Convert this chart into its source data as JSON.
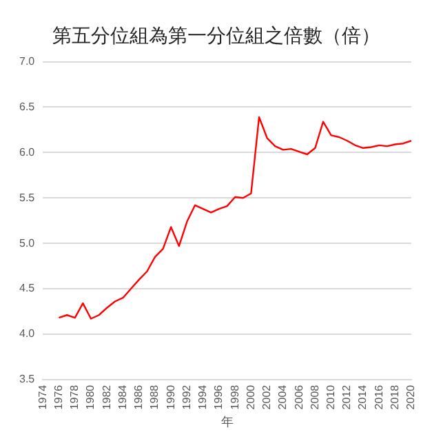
{
  "chart_data": {
    "type": "line",
    "title": "第五分位組為第一分位組之倍數（倍）",
    "xlabel": "年",
    "categories": [
      "1974",
      null,
      "1976",
      null,
      "1978",
      null,
      "1980",
      null,
      "1982",
      null,
      "1984",
      null,
      "1986",
      null,
      "1988",
      null,
      "1990",
      null,
      "1992",
      null,
      "1994",
      null,
      "1996",
      null,
      "1998",
      null,
      "2000",
      null,
      "2002",
      null,
      "2004",
      null,
      "2006",
      null,
      "2008",
      null,
      "2010",
      null,
      "2012",
      null,
      "2014",
      null,
      "2016",
      null,
      "2018",
      null,
      "2020"
    ],
    "series": [
      {
        "color": "#ff0000",
        "values": [
          null,
          null,
          4.18,
          4.21,
          4.18,
          4.34,
          4.17,
          4.21,
          4.29,
          4.36,
          4.4,
          4.5,
          4.6,
          4.69,
          4.85,
          4.94,
          5.18,
          4.97,
          5.24,
          5.42,
          5.38,
          5.34,
          5.38,
          5.41,
          5.51,
          5.5,
          5.55,
          6.39,
          6.16,
          6.07,
          6.03,
          6.04,
          6.01,
          5.98,
          6.05,
          6.34,
          6.19,
          6.17,
          6.13,
          6.08,
          6.05,
          6.06,
          6.08,
          6.07,
          6.09,
          6.1,
          6.13
        ]
      }
    ],
    "ylim": [
      3.5,
      7
    ],
    "yticks": [
      {
        "value": 3.5,
        "label": "3.5"
      },
      {
        "value": 4,
        "label": "4.0"
      },
      {
        "value": 4.5,
        "label": "4.5"
      },
      {
        "value": 5,
        "label": "5.0"
      },
      {
        "value": 5.5,
        "label": "5.5"
      },
      {
        "value": 6,
        "label": "6.0"
      },
      {
        "value": 6.5,
        "label": "6.5"
      },
      {
        "value": 7,
        "label": "7.0"
      }
    ],
    "grid": "y",
    "legend": false,
    "marker": "none",
    "line_style": "solid"
  }
}
